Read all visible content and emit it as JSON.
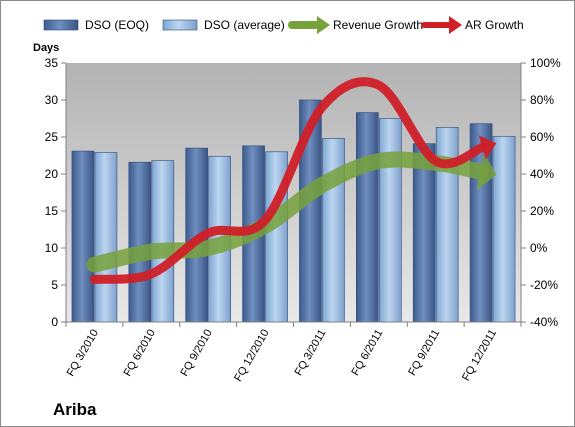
{
  "chart_data": {
    "type": "bar",
    "title": "Ariba",
    "ylabel": "Days",
    "ylim": [
      0,
      35
    ],
    "y_ticks": [
      0,
      5,
      10,
      15,
      20,
      25,
      30,
      35
    ],
    "y2lim": [
      -40,
      100
    ],
    "y2_ticks": [
      "-40%",
      "-20%",
      "0%",
      "20%",
      "40%",
      "60%",
      "80%",
      "100%"
    ],
    "categories": [
      "FQ 3/2010",
      "FQ 6/2010",
      "FQ 9/2010",
      "FQ 12/2010",
      "FQ 3/2011",
      "FQ 6/2011",
      "FQ 9/2011",
      "FQ 12/2011"
    ],
    "series": [
      {
        "name": "DSO (EOQ)",
        "type": "bar",
        "axis": "left",
        "color": "#4f6fa0",
        "values": [
          23.1,
          21.6,
          23.5,
          23.8,
          30.0,
          28.3,
          24.1,
          26.8
        ]
      },
      {
        "name": "DSO (average)",
        "type": "bar",
        "axis": "left",
        "color": "#8fb5de",
        "values": [
          22.9,
          21.8,
          22.4,
          23.0,
          24.8,
          27.5,
          26.3,
          25.1
        ]
      },
      {
        "name": "Revenue Growth",
        "type": "line-arrow",
        "axis": "right",
        "color": "#77a13b",
        "values": [
          -9,
          -2,
          0,
          12,
          34,
          47,
          46,
          40
        ]
      },
      {
        "name": "AR Growth",
        "type": "line-arrow",
        "axis": "right",
        "color": "#d01f27",
        "values": [
          -17,
          -14,
          8,
          15,
          76,
          88,
          47,
          56
        ]
      }
    ],
    "grid": false,
    "legend": "top"
  }
}
